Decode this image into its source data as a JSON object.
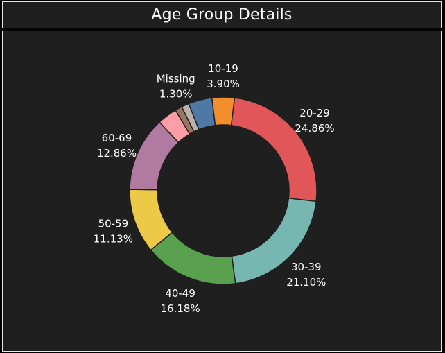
{
  "title": "Age Group Details",
  "chart_data": {
    "type": "pie",
    "variant": "donut",
    "legend": "none",
    "slices": [
      {
        "label": "10-19",
        "pct": 3.9,
        "pct_text": "3.90%",
        "color": "#f28e2b",
        "show_label": true
      },
      {
        "label": "20-29",
        "pct": 24.86,
        "pct_text": "24.86%",
        "color": "#e15759",
        "show_label": true
      },
      {
        "label": "30-39",
        "pct": 21.1,
        "pct_text": "21.10%",
        "color": "#76b7b2",
        "show_label": true
      },
      {
        "label": "40-49",
        "pct": 16.18,
        "pct_text": "16.18%",
        "color": "#59a14f",
        "show_label": true
      },
      {
        "label": "50-59",
        "pct": 11.13,
        "pct_text": "11.13%",
        "color": "#edc948",
        "show_label": true
      },
      {
        "label": "60-69",
        "pct": 12.86,
        "pct_text": "12.86%",
        "color": "#b07aa1",
        "show_label": true
      },
      {
        "label": "",
        "pct": 3.4,
        "pct_text": "",
        "color": "#ff9da7",
        "show_label": false
      },
      {
        "label": "",
        "pct": 1.2,
        "pct_text": "",
        "color": "#9c755f",
        "show_label": false
      },
      {
        "label": "Missing",
        "pct": 1.3,
        "pct_text": "1.30%",
        "color": "#bab0ac",
        "show_label": true
      },
      {
        "label": "",
        "pct": 4.07,
        "pct_text": "",
        "color": "#4e79a7",
        "show_label": false
      }
    ]
  }
}
